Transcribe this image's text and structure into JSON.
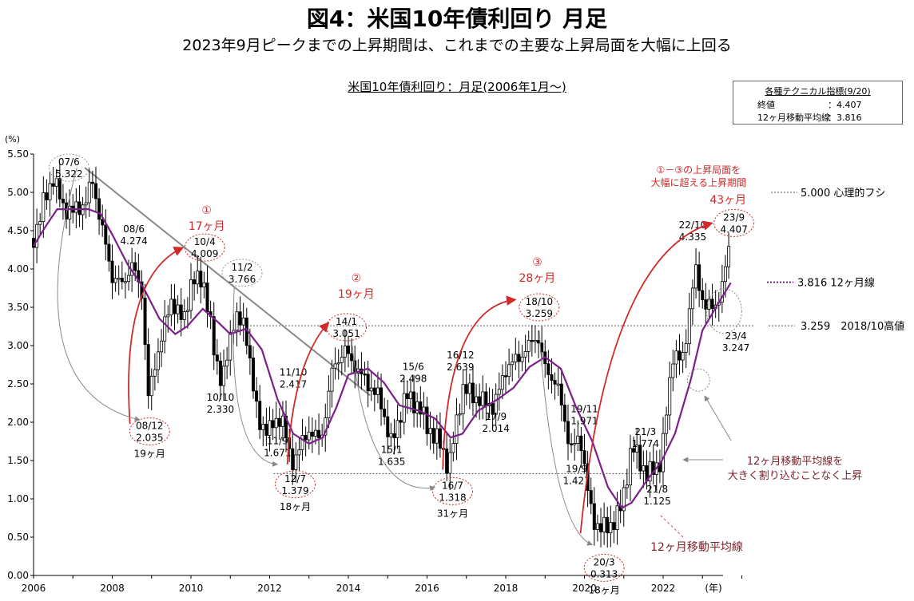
{
  "title": "図4：米国10年債利回り 月足",
  "subtitle": "2023年9月ピークまでの上昇期間は、これまでの主要な上昇局面を大幅に上回る",
  "chart_title": "米国10年債利回り：月足(2006年1月～)",
  "info_box": {
    "header": "各種テクニカル指標(9/20)",
    "rows": [
      {
        "label": "終値",
        "value": "：4.407"
      },
      {
        "label": "12ヶ月移動平均線",
        "value": "：3.816"
      }
    ]
  },
  "colors": {
    "candle": "#000000",
    "ma_line": "#7b1f8a",
    "red": "#d02a2a",
    "gray_arrow": "#888888",
    "trend_line": "#888888"
  },
  "chart_data": {
    "type": "line",
    "ylabel": "(%)",
    "xlabel": "(年)",
    "ylim": [
      0,
      5.5
    ],
    "y_ticks": [
      "0.00",
      "0.50",
      "1.00",
      "1.50",
      "2.00",
      "2.50",
      "3.00",
      "3.50",
      "4.00",
      "4.50",
      "5.00",
      "5.50"
    ],
    "x_ticks": [
      "2006",
      "2008",
      "2010",
      "2012",
      "2014",
      "2016",
      "2018",
      "2020",
      "2022"
    ],
    "series": [
      {
        "values": [
          [
            2006.0,
            4.4
          ],
          [
            2006.25,
            4.85
          ],
          [
            2006.5,
            5.2
          ],
          [
            2006.75,
            4.8
          ],
          [
            2007.0,
            4.75
          ],
          [
            2007.3,
            4.85
          ],
          [
            2007.5,
            5.15
          ],
          [
            2007.75,
            4.5
          ],
          [
            2008.0,
            3.9
          ],
          [
            2008.25,
            3.8
          ],
          [
            2008.5,
            4.05
          ],
          [
            2008.75,
            3.7
          ],
          [
            2008.92,
            2.3
          ],
          [
            2009.1,
            2.8
          ],
          [
            2009.5,
            3.6
          ],
          [
            2009.8,
            3.3
          ],
          [
            2010.0,
            3.8
          ],
          [
            2010.3,
            3.9
          ],
          [
            2010.6,
            2.9
          ],
          [
            2010.8,
            2.5
          ],
          [
            2011.1,
            3.4
          ],
          [
            2011.4,
            3.2
          ],
          [
            2011.7,
            2.0
          ],
          [
            2012.0,
            1.9
          ],
          [
            2012.3,
            2.1
          ],
          [
            2012.55,
            1.45
          ],
          [
            2012.8,
            1.7
          ],
          [
            2013.0,
            1.9
          ],
          [
            2013.3,
            1.75
          ],
          [
            2013.6,
            2.7
          ],
          [
            2013.9,
            2.95
          ],
          [
            2014.2,
            2.7
          ],
          [
            2014.5,
            2.5
          ],
          [
            2014.8,
            2.3
          ],
          [
            2015.1,
            1.7
          ],
          [
            2015.45,
            2.35
          ],
          [
            2015.8,
            2.2
          ],
          [
            2016.0,
            1.95
          ],
          [
            2016.35,
            1.7
          ],
          [
            2016.55,
            1.4
          ],
          [
            2016.9,
            2.45
          ],
          [
            2017.3,
            2.3
          ],
          [
            2017.7,
            2.2
          ],
          [
            2018.0,
            2.7
          ],
          [
            2018.45,
            2.9
          ],
          [
            2018.8,
            3.15
          ],
          [
            2019.0,
            2.7
          ],
          [
            2019.3,
            2.5
          ],
          [
            2019.65,
            1.65
          ],
          [
            2019.9,
            1.8
          ],
          [
            2020.2,
            0.7
          ],
          [
            2020.6,
            0.6
          ],
          [
            2020.95,
            0.9
          ],
          [
            2021.2,
            1.7
          ],
          [
            2021.6,
            1.3
          ],
          [
            2021.95,
            1.5
          ],
          [
            2022.25,
            2.9
          ],
          [
            2022.5,
            2.8
          ],
          [
            2022.8,
            4.0
          ],
          [
            2023.0,
            3.6
          ],
          [
            2023.3,
            3.45
          ],
          [
            2023.55,
            3.9
          ],
          [
            2023.72,
            4.4
          ]
        ]
      },
      {
        "name": "12ヶ月移動平均線",
        "values": [
          [
            2006.0,
            4.3
          ],
          [
            2006.3,
            4.55
          ],
          [
            2006.6,
            4.78
          ],
          [
            2007.0,
            4.78
          ],
          [
            2007.4,
            4.78
          ],
          [
            2007.7,
            4.72
          ],
          [
            2008.0,
            4.45
          ],
          [
            2008.4,
            4.05
          ],
          [
            2008.8,
            3.75
          ],
          [
            2009.2,
            3.35
          ],
          [
            2009.6,
            3.15
          ],
          [
            2009.9,
            3.25
          ],
          [
            2010.3,
            3.48
          ],
          [
            2010.7,
            3.3
          ],
          [
            2011.0,
            3.15
          ],
          [
            2011.4,
            3.22
          ],
          [
            2011.8,
            2.95
          ],
          [
            2012.2,
            2.3
          ],
          [
            2012.6,
            1.85
          ],
          [
            2013.0,
            1.72
          ],
          [
            2013.35,
            1.8
          ],
          [
            2013.7,
            2.2
          ],
          [
            2014.0,
            2.62
          ],
          [
            2014.5,
            2.7
          ],
          [
            2014.9,
            2.52
          ],
          [
            2015.3,
            2.22
          ],
          [
            2015.8,
            2.15
          ],
          [
            2016.2,
            2.05
          ],
          [
            2016.6,
            1.8
          ],
          [
            2016.9,
            1.85
          ],
          [
            2017.3,
            2.15
          ],
          [
            2017.8,
            2.3
          ],
          [
            2018.2,
            2.45
          ],
          [
            2018.6,
            2.72
          ],
          [
            2019.0,
            2.85
          ],
          [
            2019.4,
            2.7
          ],
          [
            2019.8,
            2.18
          ],
          [
            2020.2,
            1.75
          ],
          [
            2020.6,
            1.15
          ],
          [
            2020.95,
            0.88
          ],
          [
            2021.2,
            0.95
          ],
          [
            2021.6,
            1.25
          ],
          [
            2021.95,
            1.48
          ],
          [
            2022.3,
            1.85
          ],
          [
            2022.7,
            2.55
          ],
          [
            2023.0,
            3.2
          ],
          [
            2023.4,
            3.55
          ],
          [
            2023.72,
            3.82
          ]
        ]
      }
    ],
    "trend_line": {
      "from": [
        2007.3,
        5.322
      ],
      "to": [
        2014.55,
        2.35
      ]
    },
    "reference_lines": [
      {
        "value": 1.33,
        "label": ""
      },
      {
        "value": 3.259,
        "label": "3.259　2018/10高値"
      },
      {
        "value": 5.0,
        "label": "5.000 心理的フシ"
      },
      {
        "value": 3.816,
        "label": "3.816 12ヶ月線"
      }
    ],
    "annotations": [
      {
        "x": 2006.9,
        "y": 5.322,
        "date": "07/6",
        "value": "5.322",
        "type": "peak_circle"
      },
      {
        "x": 2008.95,
        "y": 1.88,
        "date": "08/12",
        "value": "2.035",
        "extra": "19ヶ月",
        "type": "trough_circle"
      },
      {
        "x": 2008.55,
        "y": 4.45,
        "date": "08/6",
        "value": "4.274",
        "type": "text"
      },
      {
        "x": 2010.35,
        "y": 4.28,
        "date": "10/4",
        "value": "4.009",
        "type": "peak_circle"
      },
      {
        "x": 2011.3,
        "y": 3.95,
        "date": "11/2",
        "value": "3.766",
        "type": "peak_circle"
      },
      {
        "x": 2010.75,
        "y": 2.25,
        "date": "10/10",
        "value": "2.330",
        "type": "text"
      },
      {
        "x": 2012.2,
        "y": 1.68,
        "date": "11/9",
        "value": "1.671",
        "type": "text"
      },
      {
        "x": 2012.6,
        "y": 2.58,
        "date": "11/10",
        "value": "2.417",
        "type": "text"
      },
      {
        "x": 2012.65,
        "y": 1.19,
        "date": "12/7",
        "value": "1.379",
        "extra": "18ヶ月",
        "type": "trough_circle"
      },
      {
        "x": 2013.95,
        "y": 3.24,
        "date": "14/1",
        "value": "3.051",
        "type": "peak_circle"
      },
      {
        "x": 2015.65,
        "y": 2.65,
        "date": "15/6",
        "value": "2.498",
        "type": "text"
      },
      {
        "x": 2015.1,
        "y": 1.57,
        "date": "15/1",
        "value": "1.635",
        "type": "text"
      },
      {
        "x": 2016.65,
        "y": 1.1,
        "date": "16/7",
        "value": "1.318",
        "extra": "31ヶ月",
        "type": "trough_circle"
      },
      {
        "x": 2016.85,
        "y": 2.8,
        "date": "16/12",
        "value": "2.639",
        "type": "text"
      },
      {
        "x": 2017.75,
        "y": 2.0,
        "date": "17/9",
        "value": "2.014",
        "type": "text"
      },
      {
        "x": 2018.85,
        "y": 3.5,
        "date": "18/10",
        "value": "3.259",
        "type": "peak_circle"
      },
      {
        "x": 2020.0,
        "y": 2.1,
        "date": "19/11",
        "value": "1.971",
        "type": "text"
      },
      {
        "x": 2019.8,
        "y": 1.32,
        "date": "19/9",
        "value": "1.427",
        "type": "text"
      },
      {
        "x": 2020.5,
        "y": 0.1,
        "date": "20/3",
        "value": "0.313",
        "extra": "18ヶ月",
        "type": "trough_circle"
      },
      {
        "x": 2021.55,
        "y": 1.8,
        "date": "21/3",
        "value": "1.774",
        "type": "text"
      },
      {
        "x": 2021.85,
        "y": 1.05,
        "date": "21/8",
        "value": "1.125",
        "type": "text"
      },
      {
        "x": 2022.75,
        "y": 4.5,
        "date": "22/10",
        "value": "4.335",
        "type": "text"
      },
      {
        "x": 2023.8,
        "y": 4.6,
        "date": "23/9",
        "value": "4.407",
        "type": "peak_circle"
      },
      {
        "x": 2023.85,
        "y": 3.05,
        "date": "23/4",
        "value": "3.247",
        "type": "text"
      }
    ],
    "phases": [
      {
        "marker": "①",
        "duration": "17ヶ月"
      },
      {
        "marker": "②",
        "duration": "19ヶ月"
      },
      {
        "marker": "③",
        "duration": "28ヶ月"
      },
      {
        "note_line1": "①－③の上昇局面を",
        "note_line2": "大幅に超える上昇期間",
        "duration": "43ヶ月"
      }
    ],
    "callouts": {
      "ma_note_line1": "12ヶ月移動平均線を",
      "ma_note_line2": "大きく割り込むことなく上昇",
      "ma_label": "12ヶ月移動平均線"
    }
  }
}
